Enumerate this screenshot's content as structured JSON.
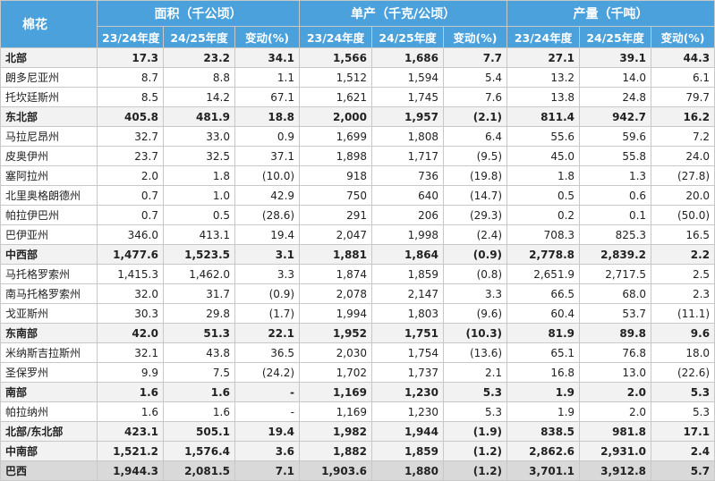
{
  "header": {
    "corner": "棉花",
    "groups": [
      "面积（千公顷）",
      "单产（千克/公顷）",
      "产量（千吨）"
    ],
    "subcols": [
      "23/24年度",
      "24/25年度",
      "变动(%)",
      "23/24年度",
      "24/25年度",
      "变动(%)",
      "23/24年度",
      "24/25年度",
      "变动(%)"
    ]
  },
  "rows": [
    {
      "name": "北部",
      "style": "bold",
      "values": [
        "17.3",
        "23.2",
        "34.1",
        "1,566",
        "1,686",
        "7.7",
        "27.1",
        "39.1",
        "44.3"
      ]
    },
    {
      "name": "朗多尼亚州",
      "style": "plain",
      "values": [
        "8.7",
        "8.8",
        "1.1",
        "1,512",
        "1,594",
        "5.4",
        "13.2",
        "14.0",
        "6.1"
      ]
    },
    {
      "name": "托坎廷斯州",
      "style": "plain",
      "values": [
        "8.5",
        "14.2",
        "67.1",
        "1,621",
        "1,745",
        "7.6",
        "13.8",
        "24.8",
        "79.7"
      ]
    },
    {
      "name": "东北部",
      "style": "bold",
      "values": [
        "405.8",
        "481.9",
        "18.8",
        "2,000",
        "1,957",
        "(2.1)",
        "811.4",
        "942.7",
        "16.2"
      ]
    },
    {
      "name": "马拉尼昂州",
      "style": "plain",
      "values": [
        "32.7",
        "33.0",
        "0.9",
        "1,699",
        "1,808",
        "6.4",
        "55.6",
        "59.6",
        "7.2"
      ]
    },
    {
      "name": "皮奥伊州",
      "style": "plain",
      "values": [
        "23.7",
        "32.5",
        "37.1",
        "1,898",
        "1,717",
        "(9.5)",
        "45.0",
        "55.8",
        "24.0"
      ]
    },
    {
      "name": "塞阿拉州",
      "style": "plain",
      "values": [
        "2.0",
        "1.8",
        "(10.0)",
        "918",
        "736",
        "(19.8)",
        "1.8",
        "1.3",
        "(27.8)"
      ]
    },
    {
      "name": "北里奥格朗德州",
      "style": "plain",
      "values": [
        "0.7",
        "1.0",
        "42.9",
        "750",
        "640",
        "(14.7)",
        "0.5",
        "0.6",
        "20.0"
      ]
    },
    {
      "name": "帕拉伊巴州",
      "style": "plain",
      "values": [
        "0.7",
        "0.5",
        "(28.6)",
        "291",
        "206",
        "(29.3)",
        "0.2",
        "0.1",
        "(50.0)"
      ]
    },
    {
      "name": "巴伊亚州",
      "style": "plain",
      "values": [
        "346.0",
        "413.1",
        "19.4",
        "2,047",
        "1,998",
        "(2.4)",
        "708.3",
        "825.3",
        "16.5"
      ]
    },
    {
      "name": "中西部",
      "style": "bold",
      "values": [
        "1,477.6",
        "1,523.5",
        "3.1",
        "1,881",
        "1,864",
        "(0.9)",
        "2,778.8",
        "2,839.2",
        "2.2"
      ]
    },
    {
      "name": "马托格罗索州",
      "style": "plain",
      "values": [
        "1,415.3",
        "1,462.0",
        "3.3",
        "1,874",
        "1,859",
        "(0.8)",
        "2,651.9",
        "2,717.5",
        "2.5"
      ]
    },
    {
      "name": "南马托格罗索州",
      "style": "plain",
      "values": [
        "32.0",
        "31.7",
        "(0.9)",
        "2,078",
        "2,147",
        "3.3",
        "66.5",
        "68.0",
        "2.3"
      ]
    },
    {
      "name": "戈亚斯州",
      "style": "plain",
      "values": [
        "30.3",
        "29.8",
        "(1.7)",
        "1,994",
        "1,803",
        "(9.6)",
        "60.4",
        "53.7",
        "(11.1)"
      ]
    },
    {
      "name": "东南部",
      "style": "bold",
      "values": [
        "42.0",
        "51.3",
        "22.1",
        "1,952",
        "1,751",
        "(10.3)",
        "81.9",
        "89.8",
        "9.6"
      ]
    },
    {
      "name": "米纳斯吉拉斯州",
      "style": "plain",
      "values": [
        "32.1",
        "43.8",
        "36.5",
        "2,030",
        "1,754",
        "(13.6)",
        "65.1",
        "76.8",
        "18.0"
      ]
    },
    {
      "name": "圣保罗州",
      "style": "plain",
      "values": [
        "9.9",
        "7.5",
        "(24.2)",
        "1,702",
        "1,737",
        "2.1",
        "16.8",
        "13.0",
        "(22.6)"
      ]
    },
    {
      "name": "南部",
      "style": "bold",
      "values": [
        "1.6",
        "1.6",
        "-",
        "1,169",
        "1,230",
        "5.3",
        "1.9",
        "2.0",
        "5.3"
      ]
    },
    {
      "name": "帕拉纳州",
      "style": "plain",
      "values": [
        "1.6",
        "1.6",
        "-",
        "1,169",
        "1,230",
        "5.3",
        "1.9",
        "2.0",
        "5.3"
      ]
    },
    {
      "name": "北部/东北部",
      "style": "bold",
      "values": [
        "423.1",
        "505.1",
        "19.4",
        "1,982",
        "1,944",
        "(1.9)",
        "838.5",
        "981.8",
        "17.1"
      ]
    },
    {
      "name": "中南部",
      "style": "bold",
      "values": [
        "1,521.2",
        "1,576.4",
        "3.6",
        "1,882",
        "1,859",
        "(1.2)",
        "2,862.6",
        "2,931.0",
        "2.4"
      ]
    },
    {
      "name": "巴西",
      "style": "total",
      "values": [
        "1,944.3",
        "2,081.5",
        "7.1",
        "1,903.6",
        "1,880",
        "(1.2)",
        "3,701.1",
        "3,912.8",
        "5.7"
      ]
    }
  ]
}
